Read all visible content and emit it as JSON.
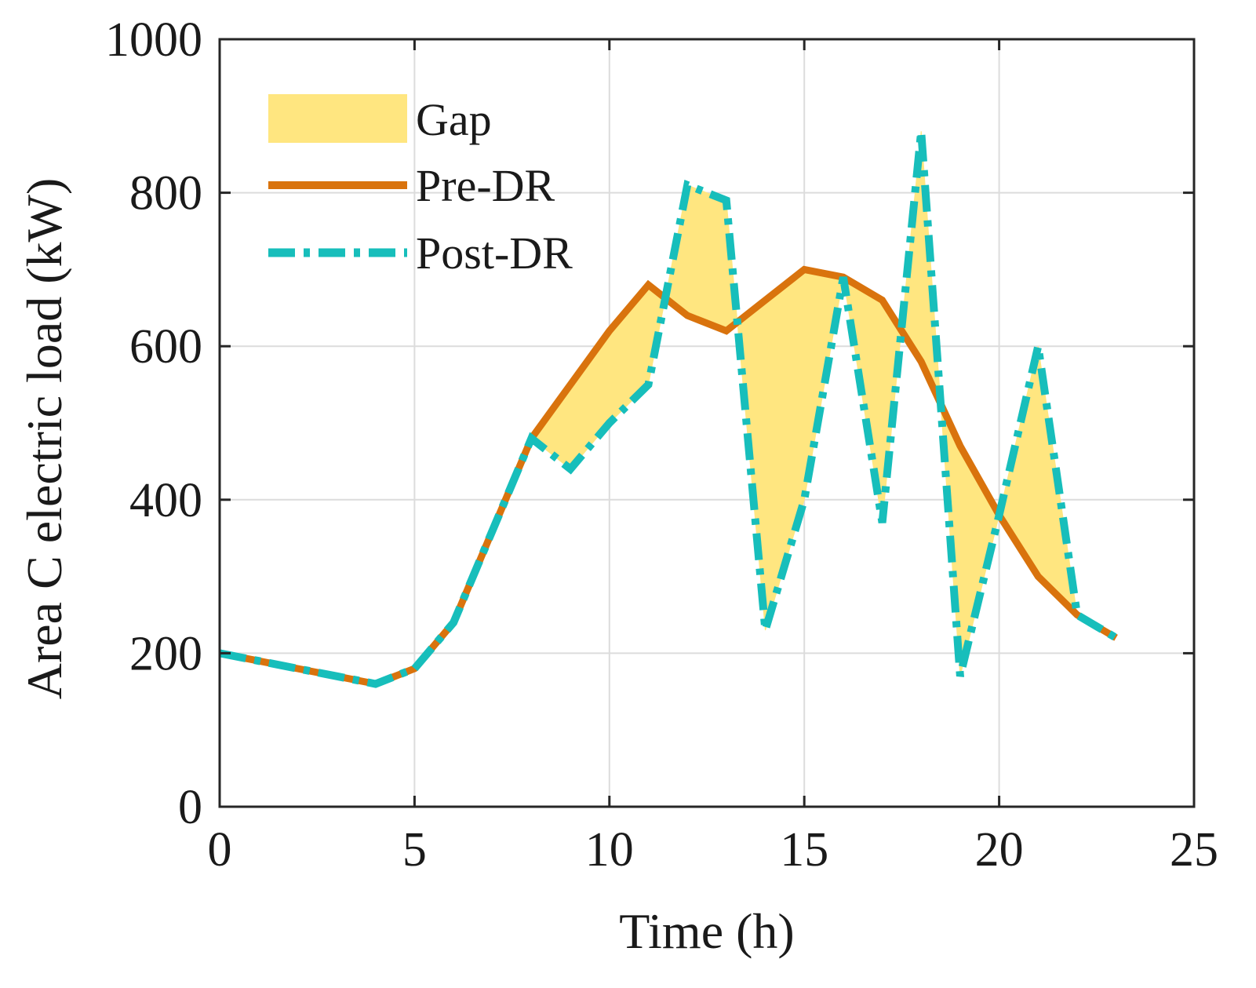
{
  "chart_data": {
    "type": "line",
    "title": "",
    "xlabel": "Time (h)",
    "ylabel": "Area C electric load (kW)",
    "xlim": [
      0,
      25
    ],
    "ylim": [
      0,
      1000
    ],
    "xticks": [
      0,
      5,
      10,
      15,
      20,
      25
    ],
    "yticks": [
      0,
      200,
      400,
      600,
      800,
      1000
    ],
    "xtick_labels": [
      "0",
      "5",
      "10",
      "15",
      "20",
      "25"
    ],
    "ytick_labels": [
      "0",
      "200",
      "400",
      "600",
      "800",
      "1000"
    ],
    "grid": true,
    "legend_position": "top-left",
    "x": [
      0,
      1,
      2,
      3,
      4,
      5,
      6,
      7,
      8,
      9,
      10,
      11,
      12,
      13,
      14,
      15,
      16,
      17,
      18,
      19,
      20,
      21,
      22,
      23
    ],
    "series": [
      {
        "name": "Pre-DR",
        "style": "solid",
        "color": "#D9730D",
        "values": [
          200,
          190,
          180,
          170,
          160,
          180,
          240,
          360,
          480,
          550,
          620,
          680,
          640,
          620,
          660,
          700,
          690,
          660,
          580,
          470,
          380,
          300,
          250,
          220
        ]
      },
      {
        "name": "Post-DR",
        "style": "dash-dot",
        "color": "#17BEBB",
        "values": [
          200,
          190,
          180,
          170,
          160,
          180,
          240,
          360,
          480,
          440,
          500,
          550,
          810,
          790,
          230,
          400,
          690,
          370,
          880,
          170,
          380,
          600,
          250,
          220
        ]
      }
    ],
    "fill": {
      "name": "Gap",
      "color": "#FFE680",
      "between": [
        "Pre-DR",
        "Post-DR"
      ]
    },
    "legend": [
      "Gap",
      "Pre-DR",
      "Post-DR"
    ]
  }
}
